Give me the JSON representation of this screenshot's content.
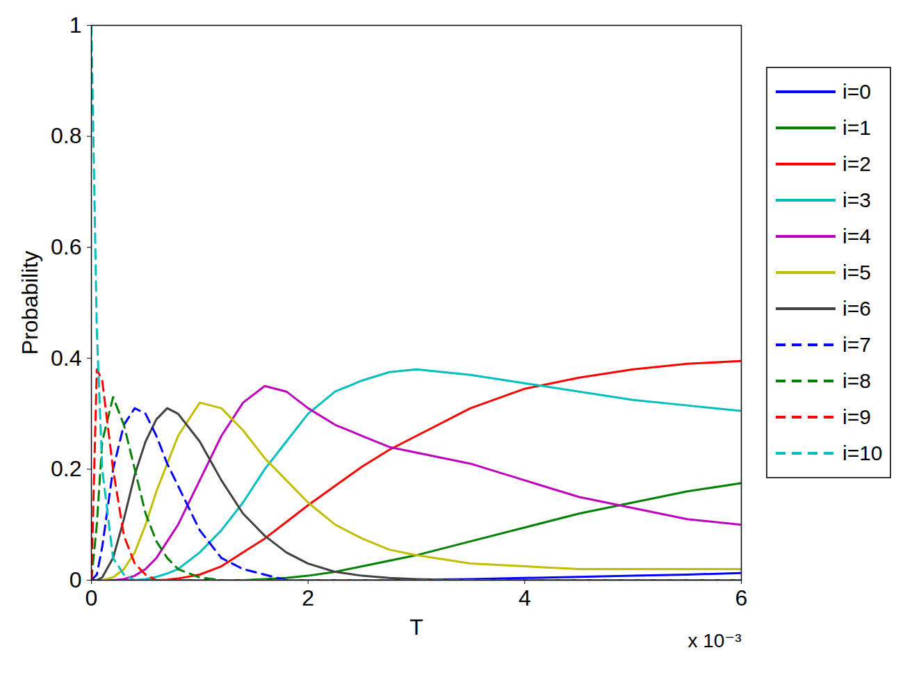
{
  "chart_data": {
    "type": "line",
    "x_label": "T",
    "y_label": "Probability",
    "annotation": "x 10⁻³",
    "legend": "right",
    "grid": false,
    "xlim": [
      0,
      0.006
    ],
    "ylim": [
      0,
      1
    ],
    "xticks": [
      {
        "value": 0,
        "label": "0"
      },
      {
        "value": 0.002,
        "label": "2"
      },
      {
        "value": 0.004,
        "label": "4"
      },
      {
        "value": 0.006,
        "label": "6"
      }
    ],
    "yticks": [
      0,
      0.2,
      0.4,
      0.6,
      0.8,
      1
    ],
    "x": [
      0,
      5e-05,
      0.0001,
      0.0002,
      0.0003,
      0.0004,
      0.0005,
      0.0006,
      0.0007,
      0.0008,
      0.001,
      0.0012,
      0.0014,
      0.0016,
      0.0018,
      0.002,
      0.00225,
      0.0025,
      0.00275,
      0.003,
      0.0035,
      0.004,
      0.0045,
      0.005,
      0.0055,
      0.006
    ],
    "series": [
      {
        "name": "i=0",
        "color": "#0000ff",
        "line_style": "solid",
        "values": [
          0,
          0,
          0,
          0,
          0,
          0,
          0,
          0,
          0,
          0,
          0,
          0,
          0,
          0,
          0,
          0,
          0,
          0,
          0,
          0.001,
          0.002,
          0.004,
          0.006,
          0.008,
          0.01,
          0.013
        ]
      },
      {
        "name": "i=1",
        "color": "#008000",
        "line_style": "solid",
        "values": [
          0,
          0,
          0,
          0,
          0,
          0,
          0,
          0,
          0,
          0,
          0,
          0,
          0,
          0.002,
          0.004,
          0.008,
          0.015,
          0.025,
          0.035,
          0.045,
          0.07,
          0.095,
          0.12,
          0.14,
          0.16,
          0.175
        ]
      },
      {
        "name": "i=2",
        "color": "#ff0000",
        "line_style": "solid",
        "values": [
          0,
          0,
          0,
          0,
          0,
          0,
          0,
          0,
          0.001,
          0.003,
          0.01,
          0.025,
          0.05,
          0.075,
          0.105,
          0.135,
          0.17,
          0.205,
          0.235,
          0.26,
          0.31,
          0.345,
          0.365,
          0.38,
          0.39,
          0.395
        ]
      },
      {
        "name": "i=3",
        "color": "#00bfbf",
        "line_style": "solid",
        "values": [
          0,
          0,
          0,
          0,
          0,
          0,
          0.002,
          0.006,
          0.012,
          0.02,
          0.05,
          0.09,
          0.14,
          0.2,
          0.25,
          0.3,
          0.34,
          0.36,
          0.375,
          0.38,
          0.37,
          0.355,
          0.34,
          0.325,
          0.315,
          0.305
        ]
      },
      {
        "name": "i=4",
        "color": "#bf00bf",
        "line_style": "solid",
        "values": [
          0,
          0,
          0,
          0,
          0.002,
          0.008,
          0.02,
          0.04,
          0.07,
          0.1,
          0.18,
          0.26,
          0.32,
          0.35,
          0.34,
          0.31,
          0.28,
          0.26,
          0.24,
          0.23,
          0.21,
          0.18,
          0.15,
          0.13,
          0.11,
          0.1
        ]
      },
      {
        "name": "i=5",
        "color": "#bfbf00",
        "line_style": "solid",
        "values": [
          0,
          0,
          0,
          0.005,
          0.02,
          0.05,
          0.1,
          0.16,
          0.21,
          0.26,
          0.32,
          0.31,
          0.27,
          0.22,
          0.18,
          0.14,
          0.1,
          0.075,
          0.055,
          0.045,
          0.03,
          0.025,
          0.02,
          0.02,
          0.02,
          0.02
        ]
      },
      {
        "name": "i=6",
        "color": "#404040",
        "line_style": "solid",
        "values": [
          0,
          0,
          0.005,
          0.04,
          0.11,
          0.19,
          0.25,
          0.29,
          0.31,
          0.3,
          0.25,
          0.18,
          0.12,
          0.08,
          0.05,
          0.03,
          0.015,
          0.008,
          0.004,
          0.002,
          0,
          0,
          0,
          0,
          0,
          0
        ]
      },
      {
        "name": "i=7",
        "color": "#0000ff",
        "line_style": "dashed",
        "values": [
          0,
          0.01,
          0.06,
          0.2,
          0.28,
          0.31,
          0.3,
          0.26,
          0.21,
          0.17,
          0.09,
          0.04,
          0.02,
          0.01,
          0,
          0,
          0,
          0,
          0,
          0,
          0,
          0,
          0,
          0,
          0,
          0
        ]
      },
      {
        "name": "i=8",
        "color": "#008000",
        "line_style": "dashed",
        "values": [
          0,
          0.1,
          0.25,
          0.33,
          0.28,
          0.2,
          0.12,
          0.07,
          0.04,
          0.02,
          0.005,
          0,
          0,
          0,
          0,
          0,
          0,
          0,
          0,
          0,
          0,
          0,
          0,
          0,
          0,
          0
        ]
      },
      {
        "name": "i=9",
        "color": "#ff0000",
        "line_style": "dashed",
        "values": [
          0,
          0.38,
          0.36,
          0.2,
          0.08,
          0.03,
          0.01,
          0,
          0,
          0,
          0,
          0,
          0,
          0,
          0,
          0,
          0,
          0,
          0,
          0,
          0,
          0,
          0,
          0,
          0,
          0
        ]
      },
      {
        "name": "i=10",
        "color": "#00bfbf",
        "line_style": "dashed",
        "values": [
          1,
          0.45,
          0.2,
          0.04,
          0.01,
          0,
          0,
          0,
          0,
          0,
          0,
          0,
          0,
          0,
          0,
          0,
          0,
          0,
          0,
          0,
          0,
          0,
          0,
          0,
          0,
          0
        ]
      }
    ]
  }
}
